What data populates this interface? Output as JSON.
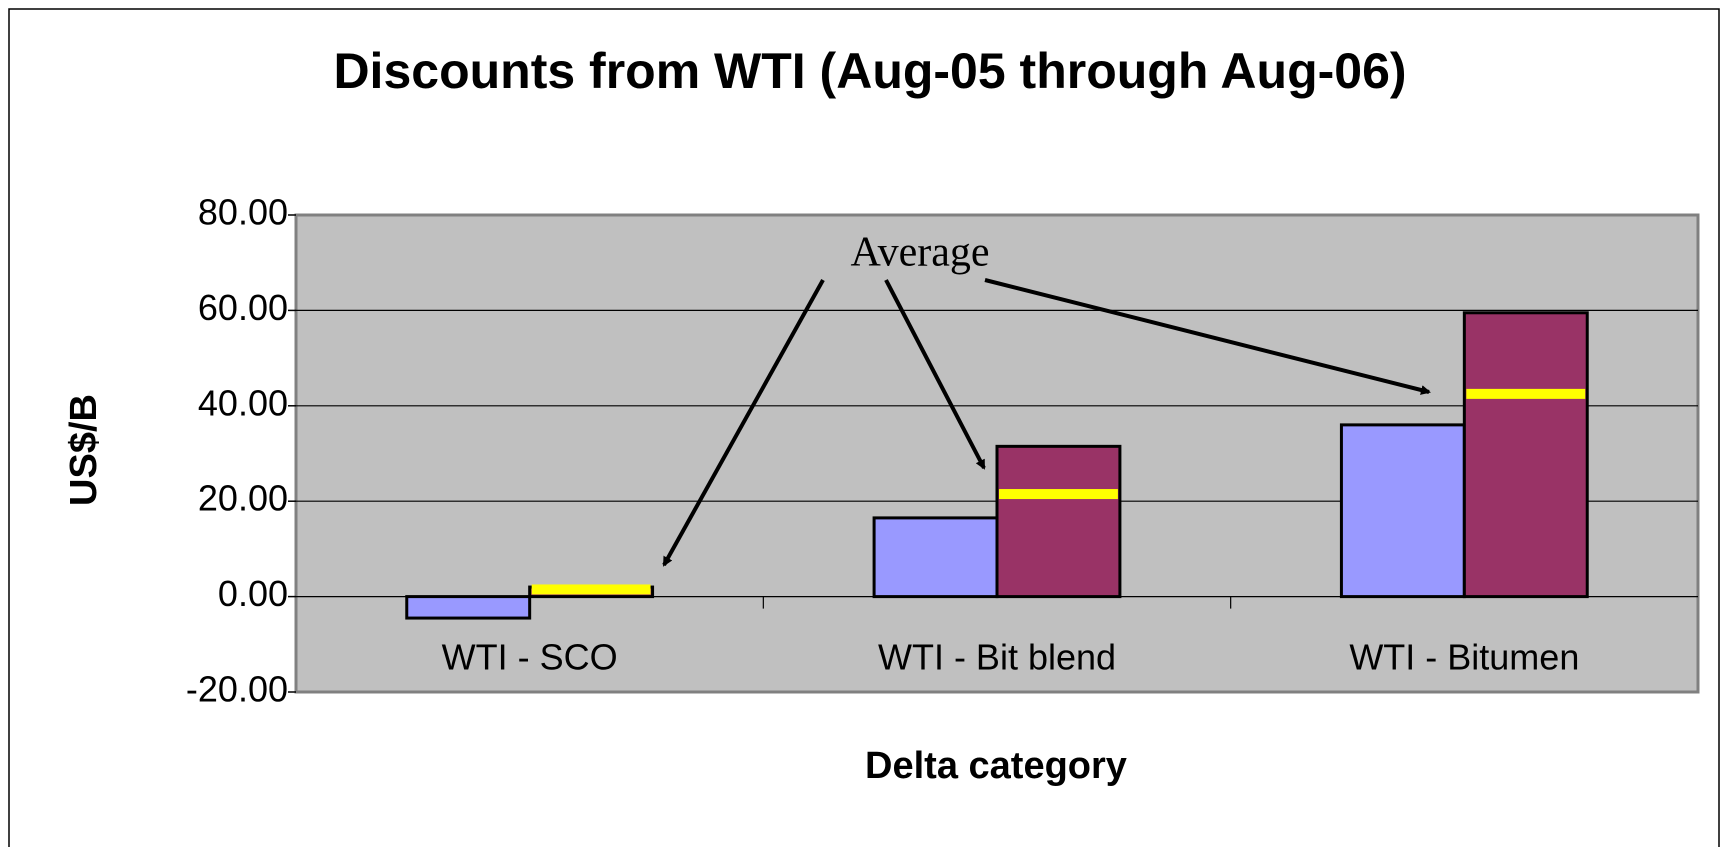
{
  "chart_data": {
    "type": "bar",
    "title": "Discounts from WTI (Aug-05 through Aug-06)",
    "x_label": "Delta category",
    "y_label": "US$/B",
    "categories": [
      "WTI - SCO",
      "WTI - Bit blend",
      "WTI - Bitumen"
    ],
    "series": [
      {
        "color": "#9999ff",
        "values": [
          -4.5,
          16.5,
          36
        ]
      },
      {
        "color": "#993366",
        "values": [
          2,
          31.5,
          59.5
        ]
      },
      {
        "color": "#ffff00",
        "mark": "line",
        "values": [
          1.5,
          21.5,
          42.5
        ]
      }
    ],
    "ylim": [
      -20,
      80
    ],
    "yticks": [
      {
        "value": -20,
        "label": "-20.00"
      },
      {
        "value": 0,
        "label": "0.00"
      },
      {
        "value": 20,
        "label": "20.00"
      },
      {
        "value": 40,
        "label": "40.00"
      },
      {
        "value": 60,
        "label": "60.00"
      },
      {
        "value": 80,
        "label": "80.00"
      }
    ],
    "grid": true,
    "annotation": "Average"
  }
}
